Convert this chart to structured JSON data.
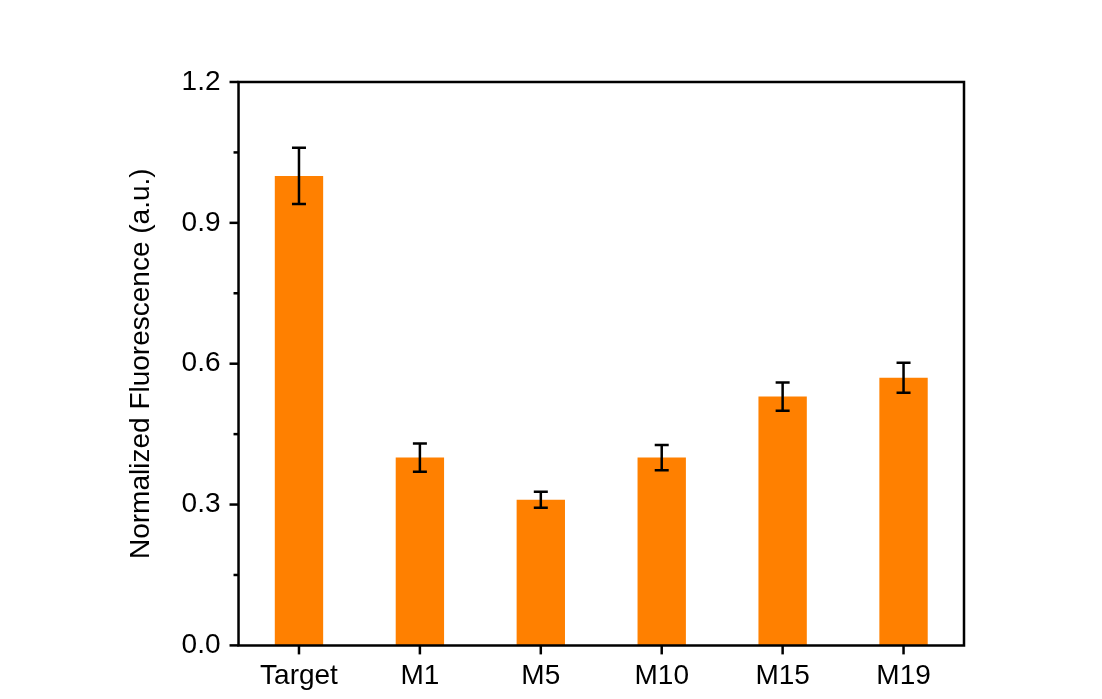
{
  "chart_data": {
    "type": "bar",
    "ylabel": "Normalized Fluorescence (a.u.)",
    "categories": [
      "Target",
      "M1",
      "M5",
      "M10",
      "M15",
      "M19"
    ],
    "values": [
      1.0,
      0.4,
      0.31,
      0.4,
      0.53,
      0.57
    ],
    "errors": [
      0.06,
      0.03,
      0.017,
      0.027,
      0.03,
      0.032
    ],
    "color": "#ff8000",
    "ylim": [
      0,
      1.2
    ],
    "yticks": [
      {
        "value": 0,
        "label": "0.0"
      },
      {
        "value": 0.15,
        "label": null
      },
      {
        "value": 0.3,
        "label": "0.3"
      },
      {
        "value": 0.45,
        "label": null
      },
      {
        "value": 0.6,
        "label": "0.6"
      },
      {
        "value": 0.75,
        "label": null
      },
      {
        "value": 0.9,
        "label": "0.9"
      },
      {
        "value": 1.05,
        "label": null
      },
      {
        "value": 1.2,
        "label": "1.2"
      }
    ],
    "grid": false,
    "legend": false
  }
}
